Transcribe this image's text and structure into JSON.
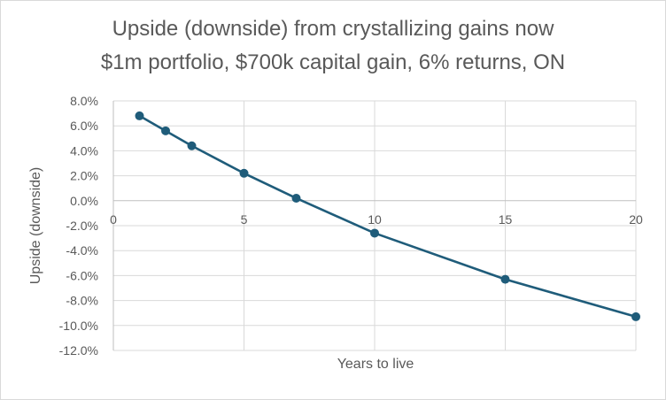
{
  "chart_data": {
    "type": "scatter",
    "title": "Upside (downside) from crystallizing gains now",
    "subtitle": "$1m portfolio, $700k capital gain, 6% returns, ON",
    "xlabel": "Years to live",
    "ylabel": "Upside (downside)",
    "xlim": [
      0,
      20
    ],
    "ylim": [
      -12.0,
      8.0
    ],
    "x_ticks": [
      0,
      5,
      10,
      15,
      20
    ],
    "x_tick_labels": [
      "0",
      "5",
      "10",
      "15",
      "20"
    ],
    "y_ticks": [
      8,
      6,
      4,
      2,
      0,
      -2,
      -4,
      -6,
      -8,
      -10,
      -12
    ],
    "y_tick_labels": [
      "8.0%",
      "6.0%",
      "4.0%",
      "2.0%",
      "0.0%",
      "-2.0%",
      "-4.0%",
      "-6.0%",
      "-8.0%",
      "-10.0%",
      "-12.0%"
    ],
    "grid": true,
    "legend": "none",
    "series": [
      {
        "x": [
          1,
          2,
          3,
          5,
          7,
          10,
          15,
          20
        ],
        "y": [
          6.8,
          5.6,
          4.4,
          2.2,
          0.2,
          -2.6,
          -6.3,
          -9.3
        ],
        "color": "#1f5c7a",
        "marker": "circle",
        "line": "straight"
      }
    ],
    "colors": {
      "series": "#1f5c7a",
      "grid": "#d9d9d9",
      "axis": "#bfbfbf",
      "text": "#595959"
    }
  }
}
